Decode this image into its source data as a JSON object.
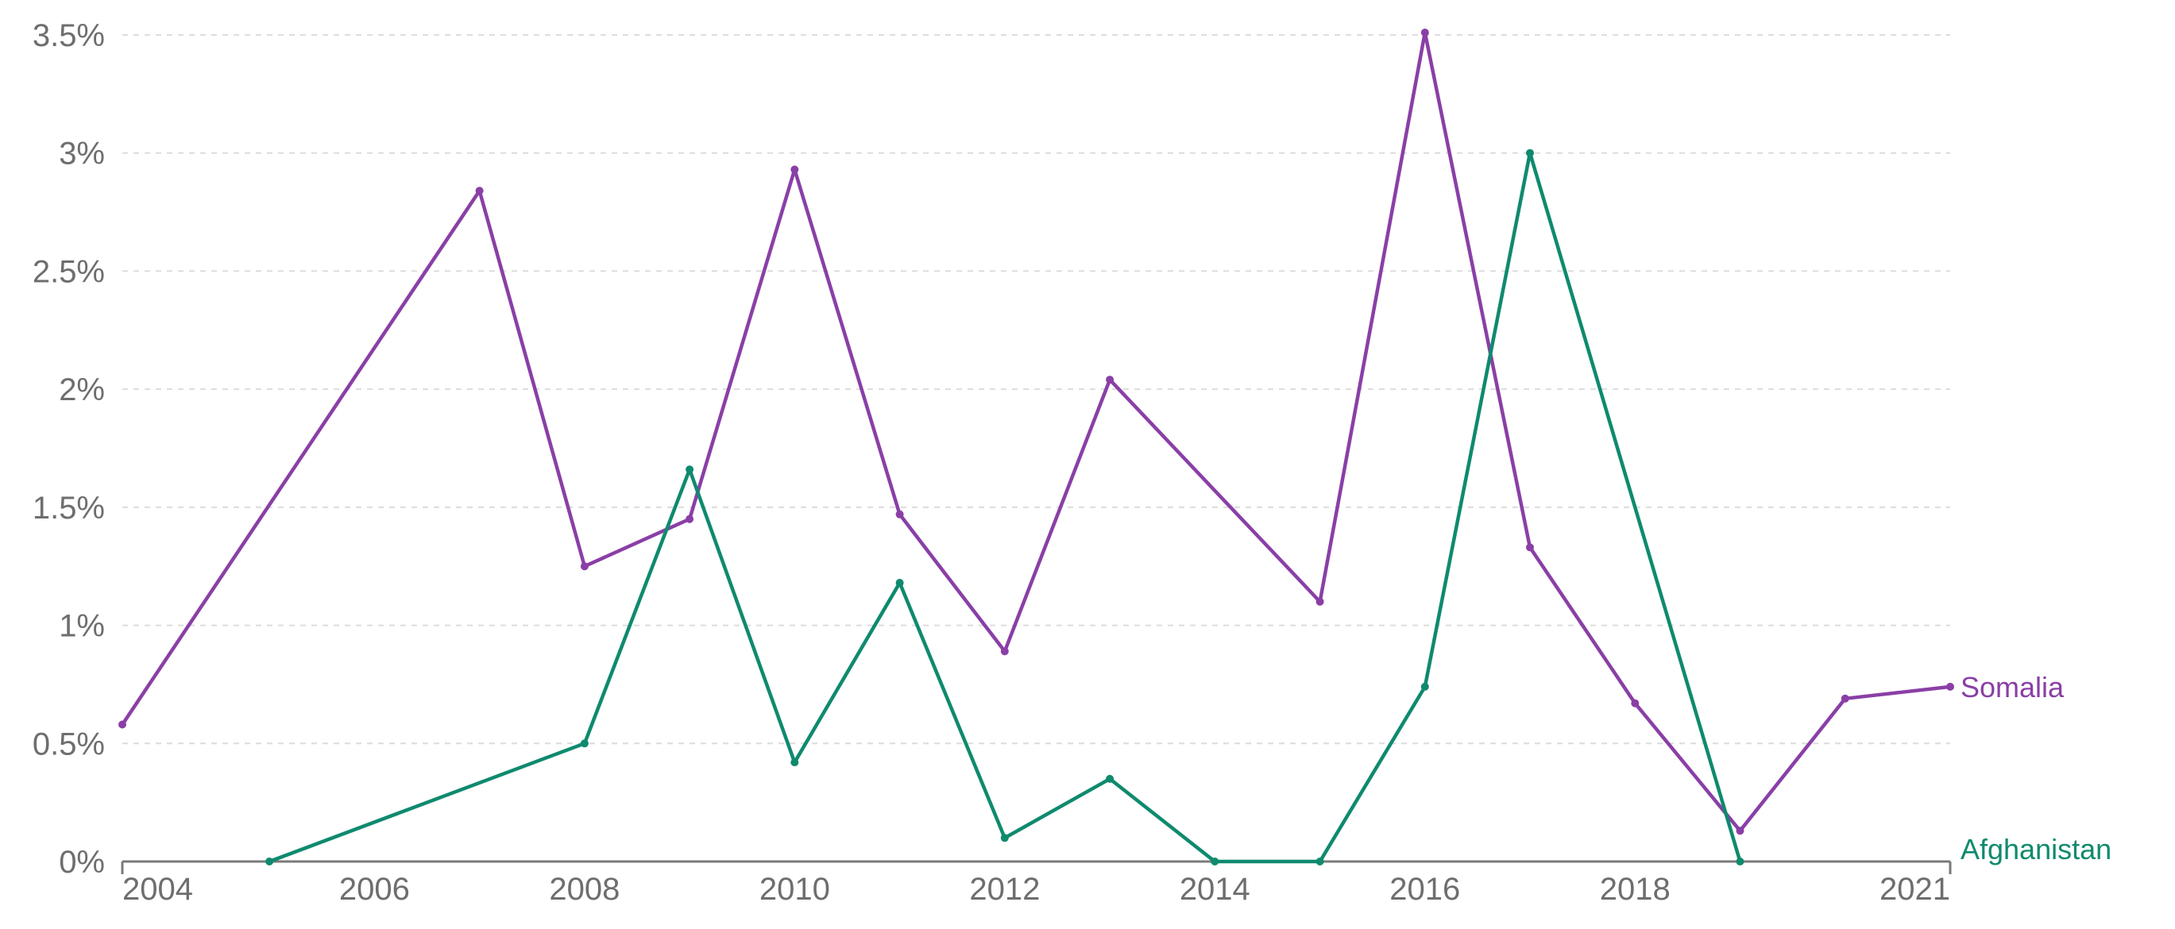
{
  "chart_data": {
    "type": "line",
    "title": "",
    "xlabel": "",
    "ylabel": "",
    "xlim": [
      2003.6,
      2021
    ],
    "ylim": [
      0,
      3.5
    ],
    "y_ticks": [
      0,
      0.5,
      1,
      1.5,
      2,
      2.5,
      3,
      3.5
    ],
    "y_tick_labels": [
      "0%",
      "0.5%",
      "1%",
      "1.5%",
      "2%",
      "2.5%",
      "3%",
      "3.5%"
    ],
    "x_ticks": [
      2004,
      2006,
      2008,
      2010,
      2012,
      2014,
      2016,
      2018,
      2021
    ],
    "x_tick_labels": [
      "2004",
      "2006",
      "2008",
      "2010",
      "2012",
      "2014",
      "2016",
      "2018",
      "2021"
    ],
    "grid": "horizontal dashed",
    "legend": "inline labels at line ends",
    "series": [
      {
        "name": "Somalia",
        "color": "#8a3fa6",
        "x": [
          2003.6,
          2007,
          2008,
          2009,
          2010,
          2011,
          2012,
          2013,
          2015,
          2016,
          2017,
          2018,
          2019,
          2020,
          2021
        ],
        "y": [
          0.58,
          2.84,
          1.25,
          1.45,
          2.93,
          1.47,
          0.89,
          2.04,
          1.1,
          3.51,
          1.33,
          0.67,
          0.13,
          0.69,
          0.74
        ]
      },
      {
        "name": "Afghanistan",
        "color": "#0f8a6e",
        "x": [
          2005,
          2008,
          2009,
          2010,
          2011,
          2012,
          2013,
          2014,
          2015,
          2016,
          2017,
          2019
        ],
        "y": [
          0,
          0.5,
          1.66,
          0.42,
          1.18,
          0.1,
          0.35,
          0,
          0,
          0.74,
          3.0,
          0
        ]
      }
    ]
  }
}
